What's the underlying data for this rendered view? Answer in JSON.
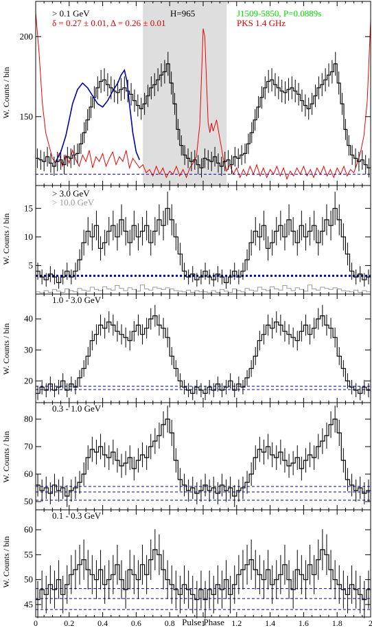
{
  "chart_data": [
    {
      "type": "line",
      "panel": "top",
      "xlim": [
        0,
        2
      ],
      "ylim": [
        107,
        222
      ],
      "yticks": [
        150,
        200
      ],
      "ylabel": "W. Counts / bin",
      "annotations": {
        "energy": "> 0.1 GeV",
        "fit": "δ = 0.27 ± 0.01, Δ = 0.26 ± 0.01",
        "htest": "H=965",
        "pulsar": "J1509-5850, P=0.0889s",
        "radio": "PKS 1.4 GHz"
      },
      "shaded_phase": [
        0.64,
        1.14
      ],
      "background_levels": [
        114
      ],
      "gamma_hist_half": [
        124,
        123,
        122,
        125,
        121,
        119,
        122,
        123,
        120,
        125,
        124,
        126,
        127,
        133,
        140,
        148,
        156,
        162,
        168,
        172,
        173,
        170,
        168,
        166,
        165,
        167,
        168,
        166,
        164,
        160,
        157,
        155,
        158,
        163,
        168,
        170,
        173,
        176,
        178,
        183,
        171,
        158,
        142,
        132,
        126,
        124,
        122,
        123,
        120,
        118
      ],
      "fit_curve_half": [
        [
          0.12,
          122
        ],
        [
          0.15,
          128
        ],
        [
          0.18,
          138
        ],
        [
          0.2,
          148
        ],
        [
          0.22,
          158
        ],
        [
          0.25,
          167
        ],
        [
          0.28,
          171
        ],
        [
          0.31,
          168
        ],
        [
          0.34,
          163
        ],
        [
          0.37,
          158
        ],
        [
          0.4,
          156
        ],
        [
          0.43,
          160
        ],
        [
          0.46,
          166
        ],
        [
          0.49,
          171
        ],
        [
          0.51,
          176
        ],
        [
          0.53,
          179
        ],
        [
          0.545,
          172
        ],
        [
          0.56,
          158
        ],
        [
          0.58,
          140
        ],
        [
          0.6,
          128
        ],
        [
          0.62,
          123
        ]
      ],
      "radio_profile": [
        [
          0,
          215
        ],
        [
          0.02,
          190
        ],
        [
          0.04,
          158
        ],
        [
          0.06,
          140
        ],
        [
          0.08,
          132
        ],
        [
          0.1,
          124
        ],
        [
          0.12,
          121
        ],
        [
          0.14,
          127
        ],
        [
          0.16,
          119
        ],
        [
          0.18,
          126
        ],
        [
          0.2,
          121
        ],
        [
          0.22,
          129
        ],
        [
          0.24,
          123
        ],
        [
          0.26,
          119
        ],
        [
          0.28,
          126
        ],
        [
          0.3,
          122
        ],
        [
          0.32,
          129
        ],
        [
          0.34,
          118
        ],
        [
          0.36,
          125
        ],
        [
          0.38,
          122
        ],
        [
          0.4,
          127
        ],
        [
          0.42,
          119
        ],
        [
          0.44,
          124
        ],
        [
          0.46,
          128
        ],
        [
          0.48,
          120
        ],
        [
          0.5,
          125
        ],
        [
          0.52,
          122
        ],
        [
          0.54,
          129
        ],
        [
          0.56,
          118
        ],
        [
          0.58,
          124
        ],
        [
          0.6,
          121
        ],
        [
          0.62,
          118
        ],
        [
          0.64,
          120
        ],
        [
          0.66,
          115
        ],
        [
          0.68,
          117
        ],
        [
          0.7,
          113
        ],
        [
          0.72,
          119
        ],
        [
          0.74,
          114
        ],
        [
          0.76,
          118
        ],
        [
          0.78,
          112
        ],
        [
          0.8,
          116
        ],
        [
          0.82,
          114
        ],
        [
          0.84,
          119
        ],
        [
          0.86,
          113
        ],
        [
          0.88,
          117
        ],
        [
          0.9,
          112
        ],
        [
          0.92,
          118
        ],
        [
          0.94,
          121
        ],
        [
          0.96,
          125
        ],
        [
          0.98,
          145
        ],
        [
          0.99,
          175
        ],
        [
          1.0,
          205
        ],
        [
          1.01,
          200
        ],
        [
          1.02,
          172
        ],
        [
          1.03,
          146
        ],
        [
          1.04,
          140
        ],
        [
          1.05,
          146
        ],
        [
          1.06,
          141
        ],
        [
          1.08,
          148
        ],
        [
          1.1,
          136
        ],
        [
          1.12,
          124
        ],
        [
          1.14,
          116
        ],
        [
          1.16,
          120
        ],
        [
          1.18,
          114
        ],
        [
          1.2,
          118
        ],
        [
          1.22,
          112
        ],
        [
          1.24,
          117
        ],
        [
          1.26,
          113
        ],
        [
          1.28,
          119
        ],
        [
          1.3,
          114
        ],
        [
          1.32,
          120
        ],
        [
          1.34,
          113
        ],
        [
          1.36,
          118
        ],
        [
          1.38,
          112
        ],
        [
          1.4,
          117
        ],
        [
          1.42,
          114
        ],
        [
          1.44,
          119
        ],
        [
          1.46,
          113
        ],
        [
          1.48,
          118
        ],
        [
          1.5,
          111
        ],
        [
          1.52,
          116
        ],
        [
          1.54,
          113
        ],
        [
          1.56,
          118
        ],
        [
          1.58,
          114
        ],
        [
          1.6,
          119
        ],
        [
          1.62,
          113
        ],
        [
          1.64,
          117
        ],
        [
          1.66,
          112
        ],
        [
          1.68,
          118
        ],
        [
          1.7,
          114
        ],
        [
          1.72,
          119
        ],
        [
          1.74,
          113
        ],
        [
          1.76,
          117
        ],
        [
          1.78,
          112
        ],
        [
          1.8,
          118
        ],
        [
          1.82,
          114
        ],
        [
          1.84,
          119
        ],
        [
          1.86,
          113
        ],
        [
          1.88,
          117
        ],
        [
          1.9,
          115
        ],
        [
          1.92,
          121
        ],
        [
          1.94,
          128
        ],
        [
          1.96,
          138
        ],
        [
          1.98,
          160
        ],
        [
          2.0,
          210
        ]
      ]
    },
    {
      "type": "line",
      "panel": "high",
      "xlim": [
        0,
        2
      ],
      "ylim": [
        0,
        19
      ],
      "yticks": [
        5,
        10,
        15
      ],
      "ylabel": "W. Counts / bin",
      "annotations": {
        "energy": "> 3.0 GeV",
        "energy2": "> 10.0 GeV"
      },
      "background_levels": [
        3.2
      ],
      "hist_half": [
        4,
        3,
        2.5,
        3.5,
        3,
        2,
        3,
        4,
        3,
        4,
        6,
        9,
        11,
        10,
        12,
        8,
        9,
        11,
        12,
        10,
        13,
        11,
        9,
        12,
        10,
        11,
        12,
        9,
        11,
        13,
        12,
        15,
        13,
        10,
        7,
        4,
        3,
        3.5,
        2.5,
        3
      ],
      "hist2_half": [
        0.4,
        0.2,
        0.6,
        0.3,
        0.8,
        0.5,
        0.3,
        0.9,
        0.6,
        0.4,
        1.0,
        0.7,
        0.5,
        1.2,
        0.8,
        0.6,
        1.3,
        0.9,
        0.7,
        1.5,
        1.0,
        0.6,
        1.1,
        0.8,
        0.5,
        1.6,
        0.9,
        0.7,
        1.2,
        1.0,
        0.8,
        1.1,
        0.9,
        0.6,
        0.5,
        0.4,
        0.7,
        0.3,
        0.6,
        0.4
      ]
    },
    {
      "type": "line",
      "panel": "mid",
      "xlim": [
        0,
        2
      ],
      "ylim": [
        13,
        48
      ],
      "yticks": [
        20,
        30,
        40
      ],
      "ylabel": "W. Counts / bin",
      "annotations": {
        "energy": "1.0 - 3.0 GeV"
      },
      "background_levels": [
        17.2,
        18.3
      ],
      "hist_half": [
        16,
        18,
        17,
        19,
        17,
        18,
        20,
        17,
        19,
        18,
        21,
        24,
        28,
        33,
        35,
        38,
        37,
        39,
        38,
        36,
        35,
        34,
        33,
        36,
        38,
        35,
        37,
        40,
        41,
        38,
        37,
        34,
        28,
        24,
        20,
        18,
        17,
        16,
        18,
        17
      ]
    },
    {
      "type": "line",
      "panel": "low",
      "xlim": [
        0,
        2
      ],
      "ylim": [
        47,
        86
      ],
      "yticks": [
        50,
        60,
        70,
        80
      ],
      "ylabel": "W. Counts / bin",
      "annotations": {
        "energy": "0.3 - 1.0 GeV"
      },
      "background_levels": [
        50.5,
        53.5,
        55.5
      ],
      "hist_half": [
        56,
        54,
        55,
        53,
        56,
        54,
        55,
        52,
        54,
        55,
        57,
        60,
        66,
        69,
        68,
        70,
        67,
        66,
        68,
        65,
        63,
        64,
        66,
        62,
        65,
        67,
        66,
        70,
        72,
        74,
        78,
        80,
        75,
        65,
        58,
        56,
        54,
        55,
        53,
        54
      ]
    },
    {
      "type": "line",
      "panel": "lowest",
      "xlim": [
        0,
        2
      ],
      "ylim": [
        42.5,
        64
      ],
      "yticks": [
        45,
        50,
        55,
        60
      ],
      "ylabel": "W. Counts / bin",
      "annotations": {
        "energy": "0.1 - 0.3 GeV"
      },
      "background_levels": [
        44,
        46.2,
        48.2
      ],
      "hist_half": [
        46,
        48,
        47,
        49,
        48,
        50,
        47,
        49,
        51,
        52,
        53,
        54,
        52,
        51,
        50,
        52,
        49,
        50,
        51,
        53,
        50,
        48,
        52,
        51,
        50,
        53,
        51,
        54,
        56,
        55,
        52,
        50,
        49,
        48,
        47,
        49,
        48,
        47,
        46,
        48
      ]
    }
  ],
  "axes": {
    "xlabel": "Pulse Phase",
    "xticks": [
      "0",
      "0.2",
      "0.4",
      "0.6",
      "0.8",
      "1",
      "1.2",
      "1.4",
      "1.6",
      "1.8",
      "2"
    ]
  },
  "colors": {
    "gamma": "#000000",
    "fit": "#0000aa",
    "radio": "#ee0000",
    "shade": "#dedede",
    "background_line": "#0000aa",
    "high_energy": "#999999",
    "pulsar_label": "#00dd00"
  }
}
